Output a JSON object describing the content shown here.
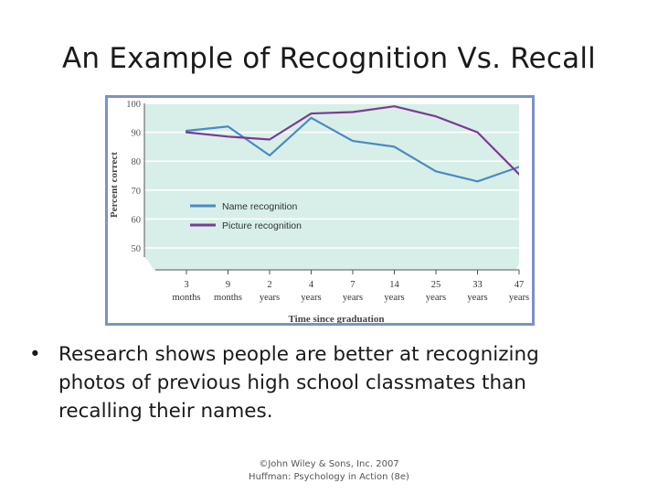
{
  "slide": {
    "title": "An Example of Recognition Vs. Recall",
    "bullet_char": "•",
    "bullet_text": "Research shows people are better at recognizing photos of previous high school classmates than recalling their names.",
    "footer_line1": "©John Wiley & Sons, Inc. 2007",
    "footer_line2": "Huffman: Psychology in Action (8e)"
  },
  "chart_data": {
    "type": "line",
    "title": "",
    "xlabel": "Time since graduation",
    "ylabel": "Percent correct",
    "ylim": [
      50,
      100
    ],
    "yticks": [
      50,
      60,
      70,
      80,
      90,
      100
    ],
    "categories": [
      {
        "top": "3",
        "bottom": "months"
      },
      {
        "top": "9",
        "bottom": "months"
      },
      {
        "top": "2",
        "bottom": "years"
      },
      {
        "top": "4",
        "bottom": "years"
      },
      {
        "top": "7",
        "bottom": "years"
      },
      {
        "top": "14",
        "bottom": "years"
      },
      {
        "top": "25",
        "bottom": "years"
      },
      {
        "top": "33",
        "bottom": "years"
      },
      {
        "top": "47",
        "bottom": "years"
      }
    ],
    "legend_position": "lower-left",
    "series": [
      {
        "name": "Name recognition",
        "color": "#4a8ac4",
        "values": [
          90.5,
          92,
          82,
          95,
          87,
          85,
          76.5,
          73,
          78
        ]
      },
      {
        "name": "Picture recognition",
        "color": "#7a3b93",
        "values": [
          90,
          88.5,
          87.5,
          96.5,
          97,
          99,
          95.5,
          90,
          75.5
        ]
      }
    ],
    "colors": {
      "plot_bg": "#d8efe9",
      "grid": "#ffffff",
      "axis": "#555555",
      "frame": "#7d92c4"
    }
  }
}
